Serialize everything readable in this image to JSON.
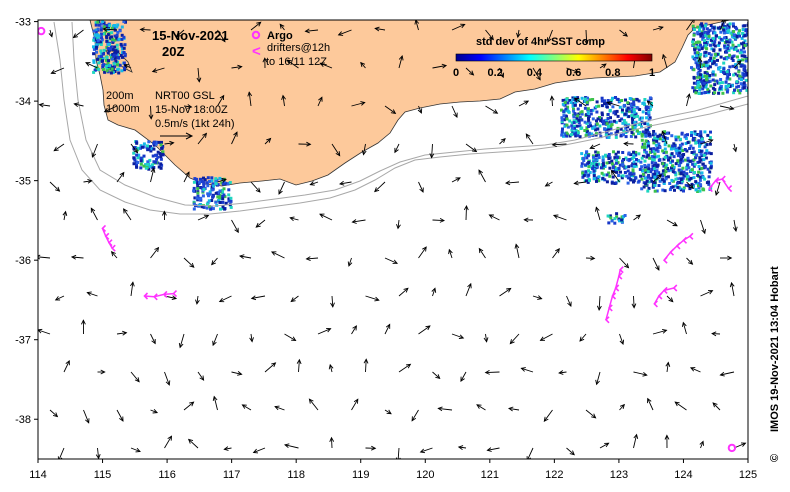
{
  "map": {
    "date_title": "15-Nov-2021",
    "time_title": "20Z",
    "legend": {
      "argo_label": "Argo",
      "drifter_symbol": "<",
      "drifter_label_1": "drifters@12h",
      "drifter_label_2": "to 16/11 12Z"
    },
    "colorbar": {
      "title": "std dev of 4hr SST comp",
      "ticks": [
        "0",
        "0.2",
        "0.4",
        "0.6",
        "0.8",
        "1"
      ]
    },
    "contours": {
      "depth_1": "200m",
      "depth_2": "1000m"
    },
    "current_info": {
      "line_1": "NRT00 GSL",
      "line_2": "15-Nov 18:00Z",
      "line_3": "0.5m/s (1kt 24h)"
    },
    "credit": "IMOS 19-Nov-2021 13:04 Hobart",
    "copyright": "©",
    "x_ticks": [
      "114",
      "115",
      "116",
      "117",
      "118",
      "119",
      "120",
      "121",
      "122",
      "123",
      "124",
      "125"
    ],
    "y_ticks": [
      "-33",
      "-34",
      "-35",
      "-36",
      "-37",
      "-38"
    ],
    "colors": {
      "land": "#fdc99b",
      "drifter": "#ff33ff",
      "sst_low": "#0a1e9e",
      "sst_mid": "#16b8e8",
      "sst_high": "#c02020"
    },
    "argo_floats": [
      {
        "lon": 114.05,
        "lat": -33.12
      },
      {
        "lon": 124.75,
        "lat": -38.36
      }
    ],
    "drifter_tracks": [
      [
        [
          115.0,
          -35.6
        ],
        [
          115.05,
          -35.7
        ],
        [
          115.1,
          -35.78
        ],
        [
          115.15,
          -35.85
        ]
      ],
      [
        [
          115.65,
          -36.45
        ],
        [
          115.8,
          -36.46
        ],
        [
          115.95,
          -36.43
        ],
        [
          116.1,
          -36.42
        ]
      ],
      [
        [
          122.8,
          -36.75
        ],
        [
          122.85,
          -36.6
        ],
        [
          122.9,
          -36.45
        ],
        [
          122.95,
          -36.35
        ],
        [
          123.0,
          -36.2
        ],
        [
          123.02,
          -36.12
        ]
      ],
      [
        [
          123.55,
          -36.55
        ],
        [
          123.62,
          -36.45
        ],
        [
          123.7,
          -36.38
        ],
        [
          123.85,
          -36.35
        ]
      ],
      [
        [
          123.7,
          -36.0
        ],
        [
          123.8,
          -35.9
        ],
        [
          123.9,
          -35.82
        ],
        [
          124.0,
          -35.75
        ],
        [
          124.1,
          -35.7
        ]
      ],
      [
        [
          124.4,
          -35.1
        ],
        [
          124.5,
          -35.0
        ],
        [
          124.6,
          -34.98
        ],
        [
          124.7,
          -35.1
        ]
      ]
    ]
  }
}
